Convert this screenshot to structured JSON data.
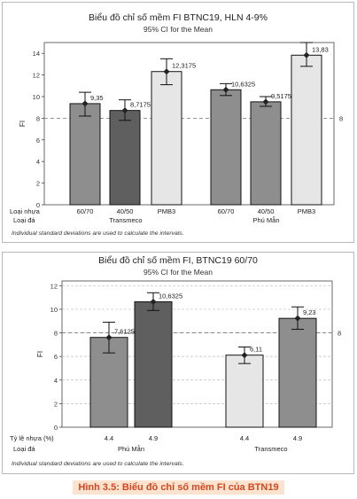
{
  "figure_caption": "Hình 3.5: Biểu đồ chỉ số mềm FI của BTN19",
  "colors": {
    "bar_light": "#e6e6e6",
    "bar_mid": "#8e8e8e",
    "bar_dark": "#5f5f5f",
    "caption_text": "#d4461d",
    "caption_bg": "#fbe3cf"
  },
  "chart_data": [
    {
      "type": "bar",
      "title": "Biểu đồ chỉ số mềm FI BTNC19, HLN 4-9%",
      "subtitle": "95% CI for the Mean",
      "ylabel": "FI",
      "ylim": [
        0,
        15
      ],
      "yticks": [
        0,
        2,
        4,
        6,
        8,
        10,
        12,
        14
      ],
      "reference_line": {
        "value": 8,
        "label": "8"
      },
      "grid": false,
      "factor_labels": [
        "Loại nhựa",
        "Loại đá"
      ],
      "groups": [
        "Transmeco",
        "Phú Mẫn"
      ],
      "categories": [
        "60/70",
        "40/50",
        "PMB3",
        "60/70",
        "40/50",
        "PMB3"
      ],
      "group_index": [
        0,
        0,
        0,
        1,
        1,
        1
      ],
      "values": [
        9.35,
        8.7175,
        12.3175,
        10.6325,
        9.5175,
        13.83
      ],
      "value_labels": [
        "9,35",
        "8,7175",
        "12,3175",
        "10,6325",
        "9,5175",
        "13,83"
      ],
      "ci_low": [
        8.2,
        7.8,
        11.1,
        10.1,
        9.1,
        12.8
      ],
      "ci_high": [
        10.4,
        9.7,
        13.5,
        11.2,
        10.0,
        15.0
      ],
      "shade": [
        "mid",
        "dark",
        "light",
        "mid",
        "mid",
        "light"
      ],
      "footnote": "Individual standard deviations are used to calculate the intervals."
    },
    {
      "type": "bar",
      "title": "Biểu đồ chỉ số mềm FI, BTNC19 60/70",
      "subtitle": "95% CI for the Mean",
      "ylabel": "FI",
      "ylim": [
        0,
        12.4
      ],
      "yticks": [
        0,
        2,
        4,
        6,
        8,
        10,
        12
      ],
      "reference_line": {
        "value": 8,
        "label": "8"
      },
      "grid": true,
      "factor_labels": [
        "Tỷ lệ nhựa (%)",
        "Loại đá"
      ],
      "groups": [
        "Phú Mẫn",
        "Transmeco"
      ],
      "categories": [
        "4.4",
        "4.9",
        "4.4",
        "4.9"
      ],
      "group_index": [
        0,
        0,
        1,
        1
      ],
      "values": [
        7.6125,
        10.6325,
        6.11,
        9.23
      ],
      "value_labels": [
        "7,6125",
        "10,6325",
        "6,11",
        "9,23"
      ],
      "ci_low": [
        6.3,
        9.9,
        5.4,
        8.3
      ],
      "ci_high": [
        8.9,
        11.4,
        6.8,
        10.2
      ],
      "shade": [
        "mid",
        "dark",
        "light",
        "mid"
      ],
      "footnote": "Individual standard deviations are used to calculate the intervals."
    }
  ]
}
